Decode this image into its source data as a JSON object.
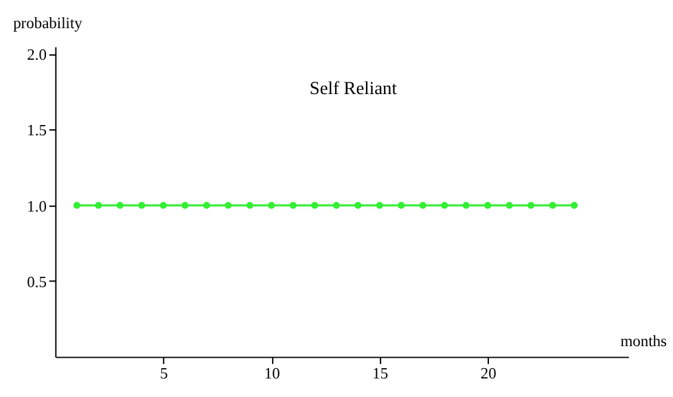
{
  "chart_data": {
    "type": "line",
    "title": "Self Reliant",
    "xlabel": "months",
    "ylabel": "probability",
    "x": [
      1,
      2,
      3,
      4,
      5,
      6,
      7,
      8,
      9,
      10,
      11,
      12,
      13,
      14,
      15,
      16,
      17,
      18,
      19,
      20,
      21,
      22,
      23,
      24
    ],
    "series": [
      {
        "color": "#33ee33",
        "values": [
          1.0,
          1.0,
          1.0,
          1.0,
          1.0,
          1.0,
          1.0,
          1.0,
          1.0,
          1.0,
          1.0,
          1.0,
          1.0,
          1.0,
          1.0,
          1.0,
          1.0,
          1.0,
          1.0,
          1.0,
          1.0,
          1.0,
          1.0,
          1.0
        ]
      }
    ],
    "xlim": [
      0,
      26.5
    ],
    "ylim": [
      0,
      2.05
    ],
    "xticks": [
      5,
      10,
      15,
      20
    ],
    "yticks": [
      {
        "value": 0.5,
        "label": "0.5"
      },
      {
        "value": 1,
        "label": "1.0"
      },
      {
        "value": 1.5,
        "label": "1.5"
      },
      {
        "value": 2,
        "label": "2.0"
      }
    ],
    "marker": "circle",
    "line_style": "solid",
    "grid": false
  }
}
